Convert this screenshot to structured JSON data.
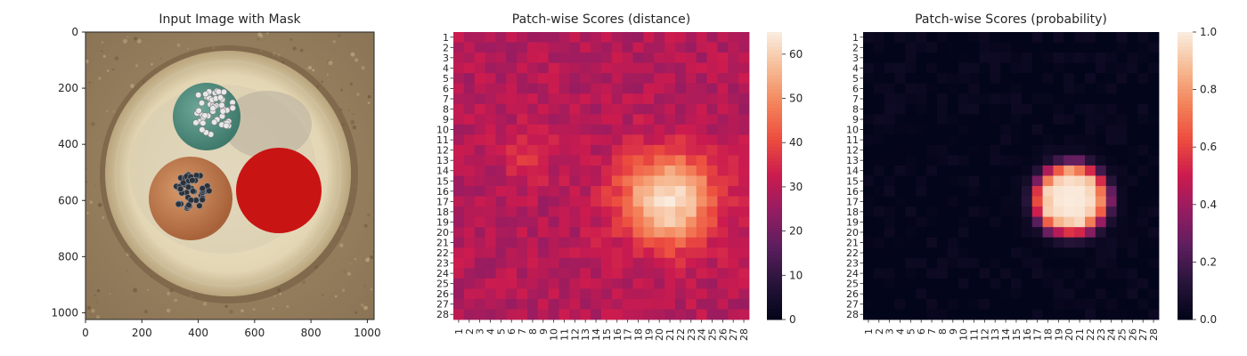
{
  "chart_data": [
    {
      "type": "image",
      "title": "Input Image with Mask",
      "xlim": [
        0,
        1024
      ],
      "ylim": [
        1024,
        0
      ],
      "xticks": [
        "0",
        "200",
        "400",
        "600",
        "800",
        "1000"
      ],
      "yticks": [
        "0",
        "200",
        "400",
        "600",
        "800",
        "1000"
      ],
      "image": {
        "subject": "top view of a cable cross-section with three insulated conductors inside a light outer sheath",
        "conductors": [
          {
            "color": "#4e8b7c",
            "core_color": "#e7e7e7",
            "center": [
              430,
              300
            ],
            "radius": 115
          },
          {
            "color": "#c47b4d",
            "core_color": "#2c3138",
            "center": [
              380,
              590
            ],
            "radius": 135
          },
          {
            "color": "#c91414",
            "masked": true,
            "center": [
              695,
              565
            ],
            "radius": 150
          }
        ],
        "mask_color": "#c91414"
      }
    },
    {
      "type": "heatmap",
      "title": "Patch-wise Scores (distance)",
      "rows": 28,
      "cols": 28,
      "xticks": [
        "1",
        "2",
        "3",
        "4",
        "5",
        "6",
        "7",
        "8",
        "9",
        "10",
        "11",
        "12",
        "13",
        "14",
        "15",
        "16",
        "17",
        "18",
        "19",
        "20",
        "21",
        "22",
        "23",
        "24",
        "25",
        "26",
        "27",
        "28"
      ],
      "yticks": [
        "1",
        "2",
        "3",
        "4",
        "5",
        "6",
        "7",
        "8",
        "9",
        "10",
        "11",
        "12",
        "13",
        "14",
        "15",
        "16",
        "17",
        "18",
        "19",
        "20",
        "21",
        "22",
        "23",
        "24",
        "25",
        "26",
        "27",
        "28"
      ],
      "colormap": "rocket",
      "vmin": 0,
      "vmax": 65,
      "colorbar_ticks": [
        "0",
        "10",
        "20",
        "30",
        "40",
        "50",
        "60"
      ],
      "model": {
        "background": 29,
        "noise_amplitude": 4,
        "hotspots": [
          {
            "row": 16.8,
            "col": 20.8,
            "peak": 65,
            "radius": 3.1
          },
          {
            "row": 12.5,
            "col": 7.5,
            "peak": 36,
            "radius": 1.8
          }
        ],
        "note": "values estimated: background ~25-35, bright blob ~50-65 around rows 13-20, cols 17-24"
      }
    },
    {
      "type": "heatmap",
      "title": "Patch-wise Scores (probability)",
      "rows": 28,
      "cols": 28,
      "xticks": [
        "1",
        "2",
        "3",
        "4",
        "5",
        "6",
        "7",
        "8",
        "9",
        "10",
        "11",
        "12",
        "13",
        "14",
        "15",
        "16",
        "17",
        "18",
        "19",
        "20",
        "21",
        "22",
        "23",
        "24",
        "25",
        "26",
        "27",
        "28"
      ],
      "yticks": [
        "1",
        "2",
        "3",
        "4",
        "5",
        "6",
        "7",
        "8",
        "9",
        "10",
        "11",
        "12",
        "13",
        "14",
        "15",
        "16",
        "17",
        "18",
        "19",
        "20",
        "21",
        "22",
        "23",
        "24",
        "25",
        "26",
        "27",
        "28"
      ],
      "colormap": "rocket",
      "vmin": 0.0,
      "vmax": 1.0,
      "colorbar_ticks": [
        "0.0",
        "0.2",
        "0.4",
        "0.6",
        "0.8",
        "1.0"
      ],
      "model": {
        "background": 0.0,
        "noise_amplitude": 0.04,
        "hotspots": [
          {
            "row": 16.8,
            "col": 20.2,
            "peak": 1.0,
            "radius": 3.3,
            "sharp": true
          }
        ],
        "note": "values near 0 outside; near 1 inside blob at rows 12-20, cols 17-24"
      }
    }
  ]
}
